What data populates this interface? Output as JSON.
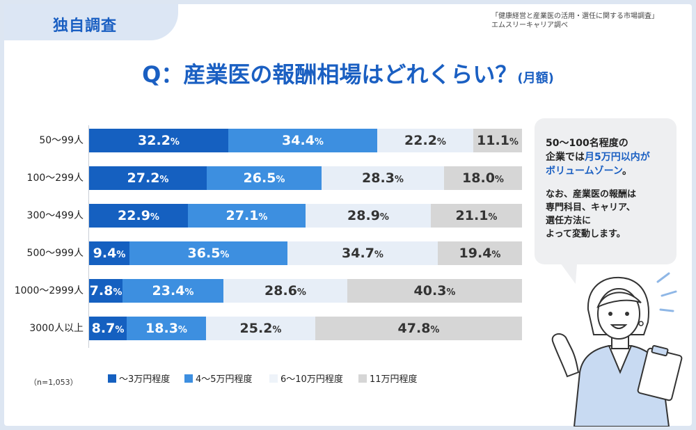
{
  "badge": "独自調査",
  "source_lines": [
    "「健康経営と産業医の活用・選任に関する市場調査」",
    "エムスリーキャリア調べ"
  ],
  "title": {
    "main": "Q：産業医の報酬相場はどれくらい？",
    "suffix": "(月額)"
  },
  "sample_note": "（n=1,053）",
  "bubble": {
    "line1": "50～100名程度の",
    "line2_pre": "企業では",
    "line2_hl": "月5万円以内が",
    "line3_hl": "ボリュームゾーン",
    "line3_post": "。",
    "note_lines": [
      "なお、産業医の報酬は",
      "専門科目、キャリア、",
      "選任方法に",
      "よって変動します。"
    ]
  },
  "colors": {
    "series1": "#1560c0",
    "series2": "#3d8fe0",
    "series3": "#e7eef7",
    "series4": "#d6d6d6",
    "accent": "#1a5fc2"
  },
  "chart_data": {
    "type": "bar",
    "orientation": "horizontal",
    "stacked": true,
    "normalized_to": 100,
    "unit": "%",
    "categories": [
      "50～99人",
      "100～299人",
      "300～499人",
      "500～999人",
      "1000～2999人",
      "3000人以上"
    ],
    "series": [
      {
        "name": "～3万円程度",
        "values": [
          32.2,
          27.2,
          22.9,
          9.4,
          7.8,
          8.7
        ]
      },
      {
        "name": "4～5万円程度",
        "values": [
          34.4,
          26.5,
          27.1,
          36.5,
          23.4,
          18.3
        ]
      },
      {
        "name": "6～10万円程度",
        "values": [
          22.2,
          28.3,
          28.9,
          34.7,
          28.6,
          25.2
        ]
      },
      {
        "name": "11万円程度",
        "values": [
          11.1,
          18.0,
          21.1,
          19.4,
          40.3,
          47.8
        ]
      }
    ],
    "legend_position": "bottom",
    "grid": false
  }
}
